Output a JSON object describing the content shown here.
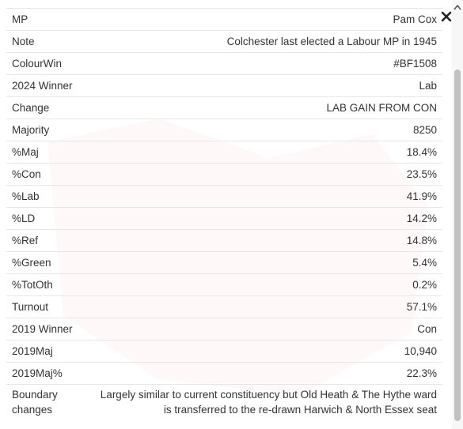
{
  "rows": [
    [
      "MP",
      "Pam Cox"
    ],
    [
      "Note",
      "Colchester last elected a Labour MP in 1945"
    ],
    [
      "ColourWin",
      "#BF1508"
    ],
    [
      "2024 Winner",
      "Lab"
    ],
    [
      "Change",
      "LAB GAIN FROM CON"
    ],
    [
      "Majority",
      "8250"
    ],
    [
      "%Maj",
      "18.4%"
    ],
    [
      "%Con",
      "23.5%"
    ],
    [
      "%Lab",
      "41.9%"
    ],
    [
      "%LD",
      "14.2%"
    ],
    [
      "%Ref",
      "14.8%"
    ],
    [
      "%Green",
      "5.4%"
    ],
    [
      "%TotOth",
      "0.2%"
    ],
    [
      "Turnout",
      "57.1%"
    ],
    [
      "2019 Winner",
      "Con"
    ],
    [
      "2019Maj",
      "10,940"
    ],
    [
      "2019Maj%",
      "22.3%"
    ],
    [
      "Boundary changes",
      "Largely similar to current constituency but Old Heath & The Hythe ward is transferred to the re-drawn Harwich & North Essex seat"
    ]
  ]
}
